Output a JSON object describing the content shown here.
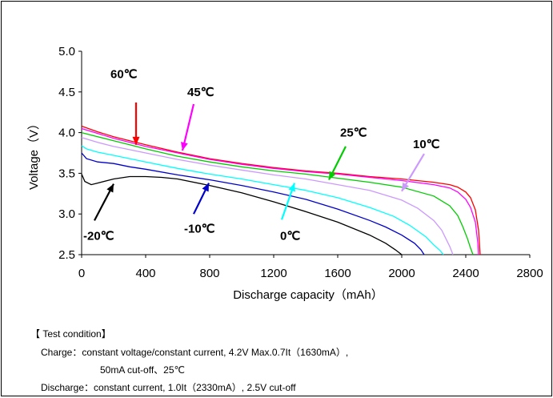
{
  "chart_data": {
    "type": "line",
    "xlabel": "Discharge capacity（mAh）",
    "ylabel": "Voltage（V）",
    "xlim": [
      0,
      2800
    ],
    "ylim": [
      2.5,
      5.0
    ],
    "xticks": [
      "0",
      "400",
      "800",
      "1200",
      "1600",
      "2000",
      "2400",
      "2800"
    ],
    "yticks": [
      "2.5",
      "3.0",
      "3.5",
      "4.0",
      "4.5",
      "5.0"
    ],
    "grid": false,
    "series": [
      {
        "name": "60℃",
        "color": "#ff0000",
        "label_pos": [
          180,
          4.72
        ],
        "arrow_from": [
          340,
          4.37
        ],
        "arrow_to": [
          340,
          3.85
        ],
        "x": [
          0,
          100,
          200,
          300,
          400,
          600,
          800,
          1000,
          1200,
          1400,
          1600,
          1800,
          2000,
          2200,
          2300,
          2350,
          2400,
          2430,
          2460,
          2480,
          2490
        ],
        "y": [
          4.08,
          4.01,
          3.95,
          3.9,
          3.85,
          3.76,
          3.68,
          3.62,
          3.57,
          3.53,
          3.5,
          3.46,
          3.43,
          3.39,
          3.36,
          3.33,
          3.27,
          3.2,
          3.05,
          2.8,
          2.5
        ]
      },
      {
        "name": "45℃",
        "color": "#ff00ff",
        "label_pos": [
          660,
          4.5
        ],
        "arrow_from": [
          700,
          4.35
        ],
        "arrow_to": [
          630,
          3.78
        ],
        "x": [
          0,
          100,
          200,
          300,
          400,
          600,
          800,
          1000,
          1200,
          1400,
          1600,
          1800,
          2000,
          2200,
          2300,
          2350,
          2400,
          2430,
          2460,
          2475,
          2480
        ],
        "y": [
          4.05,
          3.99,
          3.93,
          3.88,
          3.83,
          3.75,
          3.67,
          3.61,
          3.56,
          3.52,
          3.49,
          3.45,
          3.41,
          3.36,
          3.32,
          3.27,
          3.18,
          3.08,
          2.9,
          2.65,
          2.5
        ]
      },
      {
        "name": "25℃",
        "color": "#00cc00",
        "label_pos": [
          1615,
          4.0
        ],
        "arrow_from": [
          1650,
          3.83
        ],
        "arrow_to": [
          1545,
          3.42
        ],
        "x": [
          0,
          100,
          200,
          300,
          400,
          600,
          800,
          1000,
          1200,
          1400,
          1600,
          1800,
          2000,
          2200,
          2300,
          2350,
          2380,
          2410,
          2430,
          2445
        ],
        "y": [
          4.0,
          3.95,
          3.9,
          3.85,
          3.8,
          3.71,
          3.64,
          3.58,
          3.53,
          3.49,
          3.44,
          3.39,
          3.33,
          3.22,
          3.1,
          2.98,
          2.85,
          2.7,
          2.58,
          2.5
        ]
      },
      {
        "name": "10℃",
        "color": "#cc99ff",
        "label_pos": [
          2070,
          3.86
        ],
        "arrow_from": [
          2140,
          3.74
        ],
        "arrow_to": [
          2000,
          3.28
        ],
        "x": [
          0,
          100,
          200,
          300,
          400,
          600,
          800,
          1000,
          1200,
          1400,
          1600,
          1800,
          2000,
          2100,
          2200,
          2250,
          2280,
          2300,
          2320
        ],
        "y": [
          3.94,
          3.88,
          3.83,
          3.79,
          3.75,
          3.67,
          3.6,
          3.54,
          3.48,
          3.43,
          3.36,
          3.29,
          3.17,
          3.07,
          2.92,
          2.8,
          2.68,
          2.6,
          2.5
        ]
      },
      {
        "name": "0℃",
        "color": "#00ffff",
        "label_pos": [
          1240,
          2.73
        ],
        "arrow_from": [
          1250,
          2.93
        ],
        "arrow_to": [
          1330,
          3.38
        ],
        "x": [
          0,
          30,
          100,
          200,
          300,
          400,
          600,
          800,
          1000,
          1200,
          1400,
          1600,
          1800,
          1950,
          2050,
          2150,
          2200,
          2240,
          2260
        ],
        "y": [
          3.84,
          3.8,
          3.76,
          3.72,
          3.68,
          3.64,
          3.56,
          3.49,
          3.43,
          3.36,
          3.29,
          3.2,
          3.08,
          2.97,
          2.86,
          2.72,
          2.62,
          2.55,
          2.5
        ]
      },
      {
        "name": "-10℃",
        "color": "#0000cc",
        "label_pos": [
          640,
          2.82
        ],
        "arrow_from": [
          700,
          3.0
        ],
        "arrow_to": [
          795,
          3.38
        ],
        "x": [
          0,
          30,
          100,
          200,
          300,
          400,
          600,
          800,
          1000,
          1200,
          1400,
          1600,
          1800,
          1900,
          2000,
          2080,
          2120,
          2140
        ],
        "y": [
          3.75,
          3.68,
          3.64,
          3.62,
          3.58,
          3.55,
          3.48,
          3.42,
          3.35,
          3.27,
          3.18,
          3.06,
          2.92,
          2.84,
          2.74,
          2.64,
          2.56,
          2.5
        ]
      },
      {
        "name": "-20℃",
        "color": "#000000",
        "label_pos": [
          10,
          2.73
        ],
        "arrow_from": [
          80,
          2.92
        ],
        "arrow_to": [
          200,
          3.37
        ],
        "x": [
          0,
          20,
          60,
          100,
          200,
          300,
          400,
          500,
          600,
          800,
          1000,
          1200,
          1400,
          1600,
          1800,
          1900,
          1960,
          2000
        ],
        "y": [
          3.49,
          3.4,
          3.36,
          3.38,
          3.43,
          3.46,
          3.46,
          3.45,
          3.43,
          3.35,
          3.26,
          3.15,
          3.03,
          2.9,
          2.74,
          2.64,
          2.56,
          2.5
        ]
      }
    ]
  },
  "test_condition": {
    "heading": "【 Test condition】",
    "charge_line1": "Charge：constant voltage/constant current,   4.2V Max.0.7It（1630mA）,",
    "charge_line2": "50mA cut-off、25℃",
    "discharge_line": "Discharge：constant current,   1.0It（2330mA）, 2.5V cut-off"
  }
}
